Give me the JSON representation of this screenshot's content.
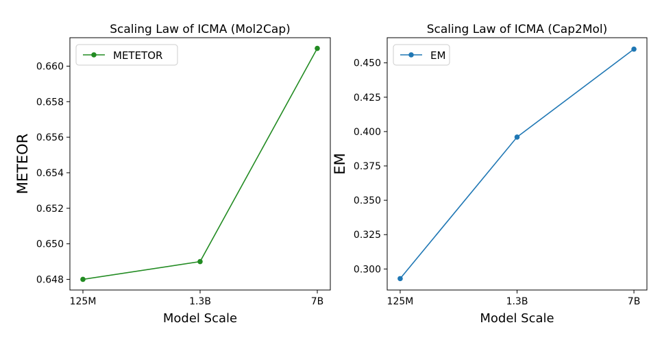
{
  "chart_data": [
    {
      "type": "line",
      "title": "Scaling Law of ICMA (Mol2Cap)",
      "xlabel": "Model Scale",
      "ylabel": "METEOR",
      "categories": [
        "125M",
        "1.3B",
        "7B"
      ],
      "series": [
        {
          "name": "METETOR",
          "values": [
            0.648,
            0.649,
            0.661
          ],
          "color": "#228b22"
        }
      ],
      "ylim": [
        0.6474,
        0.6616
      ],
      "yticks": [
        0.648,
        0.65,
        0.652,
        0.654,
        0.656,
        0.658,
        0.66
      ],
      "ytick_labels": [
        "0.648",
        "0.650",
        "0.652",
        "0.654",
        "0.656",
        "0.658",
        "0.660"
      ],
      "legend": "top-left",
      "grid": false
    },
    {
      "type": "line",
      "title": "Scaling Law of ICMA (Cap2Mol)",
      "xlabel": "Model Scale",
      "ylabel": "EM",
      "categories": [
        "125M",
        "1.3B",
        "7B"
      ],
      "series": [
        {
          "name": "EM",
          "values": [
            0.293,
            0.396,
            0.46
          ],
          "color": "#1f77b4"
        }
      ],
      "ylim": [
        0.2847,
        0.4683
      ],
      "yticks": [
        0.3,
        0.325,
        0.35,
        0.375,
        0.4,
        0.425,
        0.45
      ],
      "ytick_labels": [
        "0.300",
        "0.325",
        "0.350",
        "0.375",
        "0.400",
        "0.425",
        "0.450"
      ],
      "legend": "top-left",
      "grid": false
    }
  ]
}
